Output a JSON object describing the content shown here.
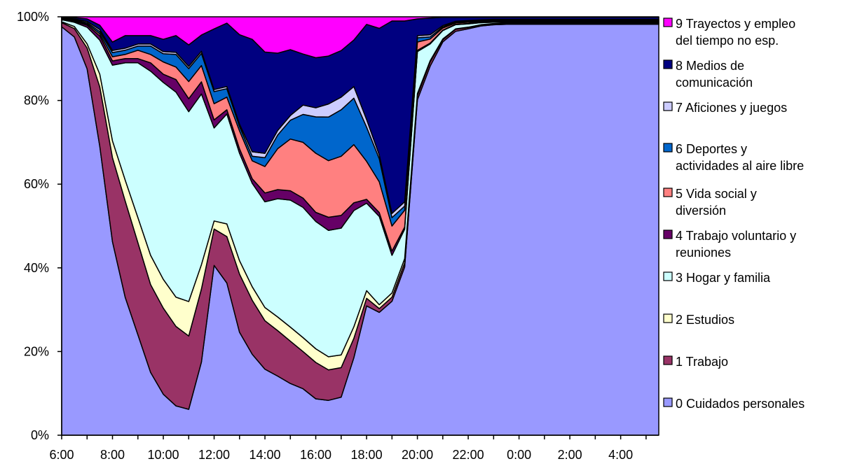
{
  "chart_data": {
    "type": "area",
    "stacked": "percent",
    "x": [
      "6:00",
      "6:30",
      "7:00",
      "7:30",
      "8:00",
      "8:30",
      "9:00",
      "9:30",
      "10:00",
      "10:30",
      "11:00",
      "11:30",
      "12:00",
      "12:30",
      "13:00",
      "13:30",
      "14:00",
      "14:30",
      "15:00",
      "15:30",
      "16:00",
      "16:30",
      "17:00",
      "17:30",
      "18:00",
      "18:30",
      "19:00",
      "19:30",
      "20:00",
      "20:30",
      "21:00",
      "21:30",
      "22:00",
      "22:30",
      "23:00",
      "23:30",
      "0:00",
      "0:30",
      "1:00",
      "1:30",
      "2:00",
      "2:30",
      "3:00",
      "3:30",
      "4:00",
      "4:30",
      "5:00",
      "5:30"
    ],
    "x_tick_labels": [
      "6:00",
      "8:00",
      "10:00",
      "12:00",
      "14:00",
      "16:00",
      "18:00",
      "20:00",
      "22:00",
      "0:00",
      "2:00",
      "4:00"
    ],
    "y_tick_labels": [
      "0%",
      "20%",
      "40%",
      "60%",
      "80%",
      "100%"
    ],
    "ylim": [
      0,
      100
    ],
    "legend_position": "right",
    "series": [
      {
        "name": "0 Cuidados personales",
        "color": "#9999ff",
        "values": [
          98,
          95,
          88,
          68,
          46,
          33,
          24,
          15,
          10,
          7,
          6,
          18,
          42,
          36,
          23,
          18,
          15,
          13,
          11,
          10,
          8,
          8,
          9,
          20,
          34,
          32,
          32,
          40,
          80,
          88,
          94,
          97,
          98,
          98,
          98,
          98,
          98,
          98,
          98,
          98,
          98,
          98,
          98,
          98,
          98,
          98,
          98,
          98
        ]
      },
      {
        "name": "1 Trabajo",
        "color": "#993366",
        "values": [
          1,
          2,
          5,
          14,
          20,
          23,
          22,
          21,
          21,
          19,
          17,
          18,
          9,
          11,
          13,
          12,
          11,
          10,
          9,
          8,
          8,
          7,
          7,
          5,
          2,
          1,
          1,
          1,
          1,
          1,
          0.5,
          0.5,
          0.3,
          0.2,
          0.2,
          0.2,
          0.2,
          0.2,
          0.2,
          0.2,
          0.2,
          0.2,
          0.2,
          0.2,
          0.2,
          0.2,
          0.2,
          0.2
        ]
      },
      {
        "name": "2 Estudios",
        "color": "#ffffcc",
        "values": [
          0.2,
          0.5,
          1,
          3,
          4,
          5,
          6,
          7,
          7,
          7,
          8,
          6,
          2,
          3,
          3,
          3,
          3,
          3,
          3,
          3,
          3,
          3,
          3,
          3,
          2,
          1,
          1,
          1,
          0.5,
          0.3,
          0.2,
          0.1,
          0.1,
          0.1,
          0.1,
          0.1,
          0.1,
          0.1,
          0.1,
          0.1,
          0.1,
          0.1,
          0.1,
          0.1,
          0.1,
          0.1,
          0.1,
          0.1
        ]
      },
      {
        "name": "3 Hogar y familia",
        "color": "#ccffff",
        "values": [
          0.5,
          1,
          4,
          8,
          18,
          28,
          37,
          44,
          48,
          49,
          44,
          42,
          23,
          26,
          24,
          23,
          24,
          26,
          27,
          28,
          28,
          29,
          30,
          30,
          23,
          23,
          9,
          7,
          10,
          4,
          2,
          1,
          0.8,
          0.5,
          0.3,
          0.2,
          0.2,
          0.2,
          0.2,
          0.2,
          0.2,
          0.2,
          0.2,
          0.2,
          0.2,
          0.2,
          0.2,
          0.2
        ]
      },
      {
        "name": "4 Trabajo voluntario y reuniones",
        "color": "#660066",
        "values": [
          0.1,
          0.2,
          0.5,
          1,
          1,
          1,
          1,
          2,
          2,
          3,
          3,
          3,
          2,
          1,
          1,
          1,
          2,
          2,
          2,
          2,
          2,
          3,
          3,
          2,
          1,
          1,
          1,
          0.5,
          0.3,
          0.2,
          0.1,
          0.1,
          0.1,
          0.1,
          0.1,
          0.1,
          0.1,
          0.1,
          0.1,
          0.1,
          0.1,
          0.1,
          0.1,
          0.1,
          0.1,
          0.1,
          0.1,
          0.1
        ]
      },
      {
        "name": "5 Vida social y diversión",
        "color": "#ff8080",
        "values": [
          0.1,
          0.2,
          0.3,
          0.5,
          1,
          1,
          2,
          2,
          3,
          3,
          4,
          4,
          4,
          3,
          4,
          4,
          6,
          9,
          11,
          12,
          13,
          13,
          14,
          15,
          10,
          8,
          6,
          4,
          2,
          1,
          0.5,
          0.3,
          0.3,
          0.2,
          0.2,
          0.2,
          0.2,
          0.2,
          0.2,
          0.2,
          0.2,
          0.2,
          0.2,
          0.2,
          0.2,
          0.2,
          0.2,
          0.2
        ]
      },
      {
        "name": "6 Deportes y actividades al aire libre",
        "color": "#0066cc",
        "values": [
          0.1,
          0.2,
          0.3,
          0.5,
          1,
          1,
          1,
          2,
          2,
          3,
          3,
          3,
          3,
          2,
          1,
          1,
          2,
          3,
          4,
          6,
          8,
          10,
          11,
          12,
          9,
          6,
          2,
          1,
          1,
          0.5,
          0.3,
          0.2,
          0.2,
          0.2,
          0.2,
          0.2,
          0.2,
          0.2,
          0.2,
          0.2,
          0.2,
          0.2,
          0.2,
          0.2,
          0.2,
          0.2,
          0.2,
          0.2
        ]
      },
      {
        "name": "7 Aficiones y juegos",
        "color": "#ccccff",
        "values": [
          0.1,
          0.2,
          0.3,
          0.5,
          0.5,
          0.5,
          0.5,
          0.5,
          0.5,
          0.5,
          0.5,
          0.5,
          0.5,
          0.5,
          0.5,
          1,
          1,
          1,
          1,
          2,
          2,
          3,
          3,
          3,
          2,
          1,
          1,
          1,
          0.5,
          0.5,
          0.3,
          0.2,
          0.2,
          0.2,
          0.2,
          0.2,
          0.2,
          0.2,
          0.2,
          0.2,
          0.2,
          0.2,
          0.2,
          0.2,
          0.2,
          0.2,
          0.2,
          0.2
        ]
      },
      {
        "name": "8 Medios de comunicación",
        "color": "#000080",
        "values": [
          0.2,
          0.3,
          0.6,
          1,
          2,
          3,
          2,
          2,
          3,
          4,
          5,
          4,
          15,
          15,
          20,
          25,
          23,
          17,
          14,
          11,
          11,
          11,
          11,
          12,
          25,
          33,
          46,
          43,
          4,
          4,
          2,
          1,
          0.8,
          0.6,
          0.5,
          0.5,
          0.5,
          0.5,
          0.5,
          0.5,
          0.5,
          0.5,
          0.5,
          0.5,
          0.5,
          0.5,
          0.5,
          0.5
        ]
      },
      {
        "name": "9 Trayectos y empleo del tiempo no esp.",
        "color": "#ff00ff",
        "values": [
          0.1,
          0.2,
          0.5,
          2,
          6,
          4.5,
          4.5,
          4.5,
          5.5,
          4.5,
          6.5,
          4.5,
          3,
          1.5,
          4,
          5,
          8,
          8,
          7,
          8,
          9,
          9,
          8,
          6,
          2,
          3,
          1,
          1,
          0.5,
          0.3,
          0.1,
          0.1,
          0.1,
          0.1,
          0.1,
          0.1,
          0.1,
          0.1,
          0.1,
          0.1,
          0.1,
          0.1,
          0.1,
          0.1,
          0.1,
          0.1,
          0.1,
          0.1
        ]
      }
    ]
  }
}
